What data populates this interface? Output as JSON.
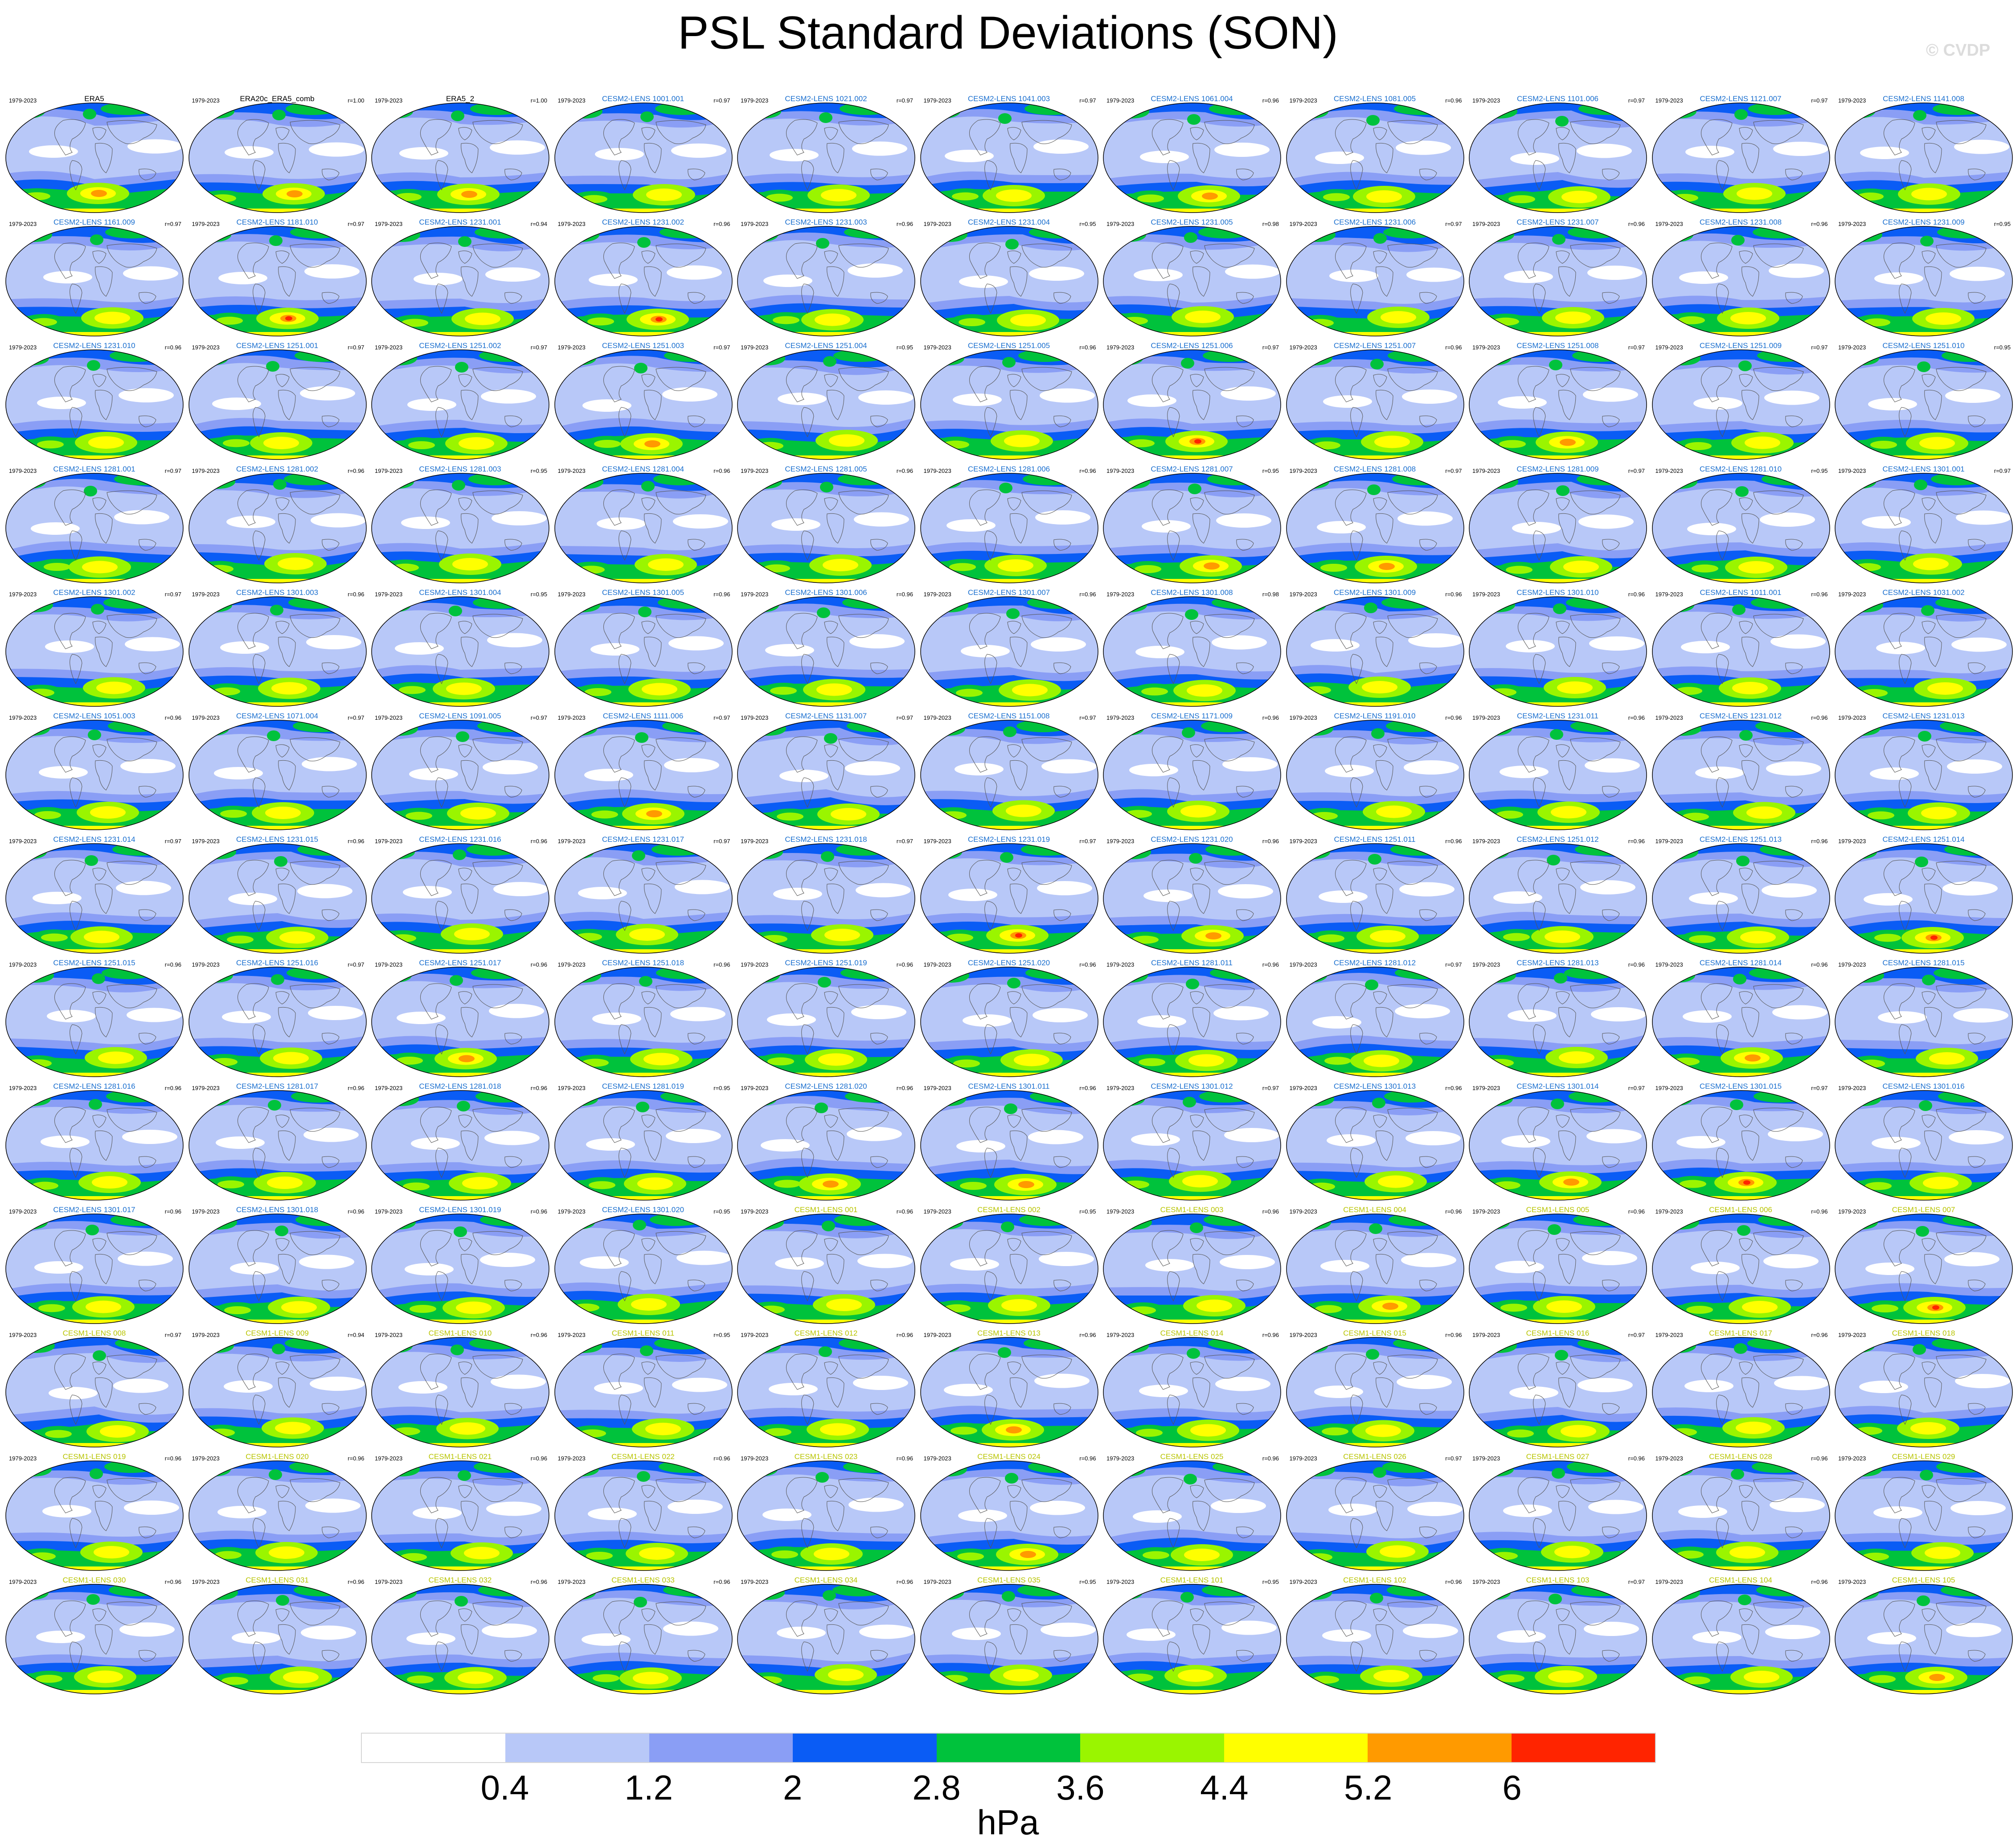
{
  "title": "PSL Standard Deviations (SON)",
  "watermark": "© CVDP",
  "period": "1979-2023",
  "colorbar": {
    "colors": [
      "#ffffff",
      "#b8c8f8",
      "#8a9ef5",
      "#0a5cf5",
      "#00c23c",
      "#9af500",
      "#ffff00",
      "#ff9a00",
      "#ff2400"
    ],
    "labels": [
      "0.4",
      "1.2",
      "2",
      "2.8",
      "3.6",
      "4.4",
      "5.2",
      "6"
    ],
    "units": "hPa"
  },
  "panels": [
    {
      "title": "ERA5",
      "r": "",
      "t": 0,
      "v": 2
    },
    {
      "title": "ERA20c_ERA5_comb",
      "r": "r=1.00",
      "t": 0,
      "v": 2
    },
    {
      "title": "ERA5_2",
      "r": "r=1.00",
      "t": 0,
      "v": 2
    },
    {
      "title": "CESM2-LENS 1001.001",
      "r": "r=0.97",
      "t": 1,
      "v": 1
    },
    {
      "title": "CESM2-LENS 1021.002",
      "r": "r=0.97",
      "t": 1,
      "v": 1
    },
    {
      "title": "CESM2-LENS 1041.003",
      "r": "r=0.97",
      "t": 1,
      "v": 1
    },
    {
      "title": "CESM2-LENS 1061.004",
      "r": "r=0.96",
      "t": 1,
      "v": 2
    },
    {
      "title": "CESM2-LENS 1081.005",
      "r": "r=0.96",
      "t": 1,
      "v": 1
    },
    {
      "title": "CESM2-LENS 1101.006",
      "r": "r=0.97",
      "t": 1,
      "v": 1
    },
    {
      "title": "CESM2-LENS 1121.007",
      "r": "r=0.97",
      "t": 1,
      "v": 1
    },
    {
      "title": "CESM2-LENS 1141.008",
      "r": "",
      "t": 1,
      "v": 1
    },
    {
      "title": "CESM2-LENS 1161.009",
      "r": "r=0.97",
      "t": 1,
      "v": 1
    },
    {
      "title": "CESM2-LENS 1181.010",
      "r": "r=0.97",
      "t": 1,
      "v": 3
    },
    {
      "title": "CESM2-LENS 1231.001",
      "r": "r=0.94",
      "t": 1,
      "v": 1
    },
    {
      "title": "CESM2-LENS 1231.002",
      "r": "r=0.96",
      "t": 1,
      "v": 3
    },
    {
      "title": "CESM2-LENS 1231.003",
      "r": "r=0.96",
      "t": 1,
      "v": 1
    },
    {
      "title": "CESM2-LENS 1231.004",
      "r": "r=0.95",
      "t": 1,
      "v": 1
    },
    {
      "title": "CESM2-LENS 1231.005",
      "r": "r=0.98",
      "t": 1,
      "v": 1
    },
    {
      "title": "CESM2-LENS 1231.006",
      "r": "r=0.97",
      "t": 1,
      "v": 1
    },
    {
      "title": "CESM2-LENS 1231.007",
      "r": "r=0.96",
      "t": 1,
      "v": 1
    },
    {
      "title": "CESM2-LENS 1231.008",
      "r": "r=0.96",
      "t": 1,
      "v": 1
    },
    {
      "title": "CESM2-LENS 1231.009",
      "r": "r=0.95",
      "t": 1,
      "v": 1
    },
    {
      "title": "CESM2-LENS 1231.010",
      "r": "r=0.96",
      "t": 1,
      "v": 1
    },
    {
      "title": "CESM2-LENS 1251.001",
      "r": "r=0.97",
      "t": 1,
      "v": 1
    },
    {
      "title": "CESM2-LENS 1251.002",
      "r": "r=0.97",
      "t": 1,
      "v": 1
    },
    {
      "title": "CESM2-LENS 1251.003",
      "r": "r=0.97",
      "t": 1,
      "v": 2
    },
    {
      "title": "CESM2-LENS 1251.004",
      "r": "r=0.95",
      "t": 1,
      "v": 1
    },
    {
      "title": "CESM2-LENS 1251.005",
      "r": "r=0.96",
      "t": 1,
      "v": 1
    },
    {
      "title": "CESM2-LENS 1251.006",
      "r": "r=0.97",
      "t": 1,
      "v": 3
    },
    {
      "title": "CESM2-LENS 1251.007",
      "r": "r=0.96",
      "t": 1,
      "v": 1
    },
    {
      "title": "CESM2-LENS 1251.008",
      "r": "r=0.97",
      "t": 1,
      "v": 2
    },
    {
      "title": "CESM2-LENS 1251.009",
      "r": "r=0.97",
      "t": 1,
      "v": 1
    },
    {
      "title": "CESM2-LENS 1251.010",
      "r": "r=0.95",
      "t": 1,
      "v": 1
    },
    {
      "title": "CESM2-LENS 1281.001",
      "r": "r=0.97",
      "t": 1,
      "v": 1
    },
    {
      "title": "CESM2-LENS 1281.002",
      "r": "r=0.96",
      "t": 1,
      "v": 1
    },
    {
      "title": "CESM2-LENS 1281.003",
      "r": "r=0.95",
      "t": 1,
      "v": 1
    },
    {
      "title": "CESM2-LENS 1281.004",
      "r": "r=0.96",
      "t": 1,
      "v": 1
    },
    {
      "title": "CESM2-LENS 1281.005",
      "r": "r=0.96",
      "t": 1,
      "v": 1
    },
    {
      "title": "CESM2-LENS 1281.006",
      "r": "r=0.96",
      "t": 1,
      "v": 1
    },
    {
      "title": "CESM2-LENS 1281.007",
      "r": "r=0.95",
      "t": 1,
      "v": 2
    },
    {
      "title": "CESM2-LENS 1281.008",
      "r": "r=0.97",
      "t": 1,
      "v": 2
    },
    {
      "title": "CESM2-LENS 1281.009",
      "r": "r=0.97",
      "t": 1,
      "v": 1
    },
    {
      "title": "CESM2-LENS 1281.010",
      "r": "r=0.95",
      "t": 1,
      "v": 1
    },
    {
      "title": "CESM2-LENS 1301.001",
      "r": "r=0.97",
      "t": 1,
      "v": 1
    },
    {
      "title": "CESM2-LENS 1301.002",
      "r": "r=0.97",
      "t": 1,
      "v": 1
    },
    {
      "title": "CESM2-LENS 1301.003",
      "r": "r=0.96",
      "t": 1,
      "v": 1
    },
    {
      "title": "CESM2-LENS 1301.004",
      "r": "r=0.95",
      "t": 1,
      "v": 1
    },
    {
      "title": "CESM2-LENS 1301.005",
      "r": "r=0.96",
      "t": 1,
      "v": 1
    },
    {
      "title": "CESM2-LENS 1301.006",
      "r": "r=0.96",
      "t": 1,
      "v": 1
    },
    {
      "title": "CESM2-LENS 1301.007",
      "r": "r=0.96",
      "t": 1,
      "v": 1
    },
    {
      "title": "CESM2-LENS 1301.008",
      "r": "r=0.98",
      "t": 1,
      "v": 1
    },
    {
      "title": "CESM2-LENS 1301.009",
      "r": "r=0.96",
      "t": 1,
      "v": 1
    },
    {
      "title": "CESM2-LENS 1301.010",
      "r": "r=0.96",
      "t": 1,
      "v": 1
    },
    {
      "title": "CESM2-LENS 1011.001",
      "r": "r=0.96",
      "t": 1,
      "v": 1
    },
    {
      "title": "CESM2-LENS 1031.002",
      "r": "",
      "t": 1,
      "v": 1
    },
    {
      "title": "CESM2-LENS 1051.003",
      "r": "r=0.96",
      "t": 1,
      "v": 1
    },
    {
      "title": "CESM2-LENS 1071.004",
      "r": "r=0.97",
      "t": 1,
      "v": 1
    },
    {
      "title": "CESM2-LENS 1091.005",
      "r": "r=0.97",
      "t": 1,
      "v": 1
    },
    {
      "title": "CESM2-LENS 1111.006",
      "r": "r=0.97",
      "t": 1,
      "v": 2
    },
    {
      "title": "CESM2-LENS 1131.007",
      "r": "r=0.97",
      "t": 1,
      "v": 1
    },
    {
      "title": "CESM2-LENS 1151.008",
      "r": "r=0.97",
      "t": 1,
      "v": 1
    },
    {
      "title": "CESM2-LENS 1171.009",
      "r": "r=0.96",
      "t": 1,
      "v": 1
    },
    {
      "title": "CESM2-LENS 1191.010",
      "r": "r=0.96",
      "t": 1,
      "v": 1
    },
    {
      "title": "CESM2-LENS 1231.011",
      "r": "r=0.96",
      "t": 1,
      "v": 1
    },
    {
      "title": "CESM2-LENS 1231.012",
      "r": "r=0.96",
      "t": 1,
      "v": 1
    },
    {
      "title": "CESM2-LENS 1231.013",
      "r": "",
      "t": 1,
      "v": 1
    },
    {
      "title": "CESM2-LENS 1231.014",
      "r": "r=0.97",
      "t": 1,
      "v": 1
    },
    {
      "title": "CESM2-LENS 1231.015",
      "r": "r=0.96",
      "t": 1,
      "v": 1
    },
    {
      "title": "CESM2-LENS 1231.016",
      "r": "r=0.96",
      "t": 1,
      "v": 1
    },
    {
      "title": "CESM2-LENS 1231.017",
      "r": "r=0.97",
      "t": 1,
      "v": 1
    },
    {
      "title": "CESM2-LENS 1231.018",
      "r": "r=0.97",
      "t": 1,
      "v": 1
    },
    {
      "title": "CESM2-LENS 1231.019",
      "r": "r=0.97",
      "t": 1,
      "v": 3
    },
    {
      "title": "CESM2-LENS 1231.020",
      "r": "r=0.96",
      "t": 1,
      "v": 2
    },
    {
      "title": "CESM2-LENS 1251.011",
      "r": "r=0.96",
      "t": 1,
      "v": 1
    },
    {
      "title": "CESM2-LENS 1251.012",
      "r": "r=0.96",
      "t": 1,
      "v": 1
    },
    {
      "title": "CESM2-LENS 1251.013",
      "r": "r=0.96",
      "t": 1,
      "v": 1
    },
    {
      "title": "CESM2-LENS 1251.014",
      "r": "",
      "t": 1,
      "v": 3
    },
    {
      "title": "CESM2-LENS 1251.015",
      "r": "r=0.96",
      "t": 1,
      "v": 1
    },
    {
      "title": "CESM2-LENS 1251.016",
      "r": "r=0.97",
      "t": 1,
      "v": 1
    },
    {
      "title": "CESM2-LENS 1251.017",
      "r": "r=0.96",
      "t": 1,
      "v": 2
    },
    {
      "title": "CESM2-LENS 1251.018",
      "r": "r=0.96",
      "t": 1,
      "v": 1
    },
    {
      "title": "CESM2-LENS 1251.019",
      "r": "r=0.96",
      "t": 1,
      "v": 1
    },
    {
      "title": "CESM2-LENS 1251.020",
      "r": "r=0.96",
      "t": 1,
      "v": 1
    },
    {
      "title": "CESM2-LENS 1281.011",
      "r": "r=0.96",
      "t": 1,
      "v": 1
    },
    {
      "title": "CESM2-LENS 1281.012",
      "r": "r=0.97",
      "t": 1,
      "v": 1
    },
    {
      "title": "CESM2-LENS 1281.013",
      "r": "r=0.96",
      "t": 1,
      "v": 1
    },
    {
      "title": "CESM2-LENS 1281.014",
      "r": "r=0.96",
      "t": 1,
      "v": 2
    },
    {
      "title": "CESM2-LENS 1281.015",
      "r": "",
      "t": 1,
      "v": 1
    },
    {
      "title": "CESM2-LENS 1281.016",
      "r": "r=0.96",
      "t": 1,
      "v": 1
    },
    {
      "title": "CESM2-LENS 1281.017",
      "r": "r=0.96",
      "t": 1,
      "v": 1
    },
    {
      "title": "CESM2-LENS 1281.018",
      "r": "r=0.96",
      "t": 1,
      "v": 1
    },
    {
      "title": "CESM2-LENS 1281.019",
      "r": "r=0.95",
      "t": 1,
      "v": 1
    },
    {
      "title": "CESM2-LENS 1281.020",
      "r": "r=0.96",
      "t": 1,
      "v": 2
    },
    {
      "title": "CESM2-LENS 1301.011",
      "r": "r=0.96",
      "t": 1,
      "v": 2
    },
    {
      "title": "CESM2-LENS 1301.012",
      "r": "r=0.97",
      "t": 1,
      "v": 1
    },
    {
      "title": "CESM2-LENS 1301.013",
      "r": "r=0.96",
      "t": 1,
      "v": 1
    },
    {
      "title": "CESM2-LENS 1301.014",
      "r": "r=0.97",
      "t": 1,
      "v": 2
    },
    {
      "title": "CESM2-LENS 1301.015",
      "r": "r=0.97",
      "t": 1,
      "v": 3
    },
    {
      "title": "CESM2-LENS 1301.016",
      "r": "",
      "t": 1,
      "v": 1
    },
    {
      "title": "CESM2-LENS 1301.017",
      "r": "r=0.96",
      "t": 1,
      "v": 1
    },
    {
      "title": "CESM2-LENS 1301.018",
      "r": "r=0.96",
      "t": 1,
      "v": 1
    },
    {
      "title": "CESM2-LENS 1301.019",
      "r": "r=0.96",
      "t": 1,
      "v": 1
    },
    {
      "title": "CESM2-LENS 1301.020",
      "r": "r=0.95",
      "t": 1,
      "v": 1
    },
    {
      "title": "CESM1-LENS 001",
      "r": "r=0.96",
      "t": 2,
      "v": 1
    },
    {
      "title": "CESM1-LENS 002",
      "r": "r=0.95",
      "t": 2,
      "v": 1
    },
    {
      "title": "CESM1-LENS 003",
      "r": "r=0.96",
      "t": 2,
      "v": 1
    },
    {
      "title": "CESM1-LENS 004",
      "r": "r=0.96",
      "t": 2,
      "v": 2
    },
    {
      "title": "CESM1-LENS 005",
      "r": "r=0.96",
      "t": 2,
      "v": 1
    },
    {
      "title": "CESM1-LENS 006",
      "r": "r=0.96",
      "t": 2,
      "v": 1
    },
    {
      "title": "CESM1-LENS 007",
      "r": "",
      "t": 2,
      "v": 3
    },
    {
      "title": "CESM1-LENS 008",
      "r": "r=0.97",
      "t": 2,
      "v": 1
    },
    {
      "title": "CESM1-LENS 009",
      "r": "r=0.94",
      "t": 2,
      "v": 1
    },
    {
      "title": "CESM1-LENS 010",
      "r": "r=0.96",
      "t": 2,
      "v": 1
    },
    {
      "title": "CESM1-LENS 011",
      "r": "r=0.95",
      "t": 2,
      "v": 1
    },
    {
      "title": "CESM1-LENS 012",
      "r": "r=0.96",
      "t": 2,
      "v": 1
    },
    {
      "title": "CESM1-LENS 013",
      "r": "r=0.96",
      "t": 2,
      "v": 2
    },
    {
      "title": "CESM1-LENS 014",
      "r": "r=0.96",
      "t": 2,
      "v": 1
    },
    {
      "title": "CESM1-LENS 015",
      "r": "r=0.96",
      "t": 2,
      "v": 1
    },
    {
      "title": "CESM1-LENS 016",
      "r": "r=0.97",
      "t": 2,
      "v": 1
    },
    {
      "title": "CESM1-LENS 017",
      "r": "r=0.96",
      "t": 2,
      "v": 1
    },
    {
      "title": "CESM1-LENS 018",
      "r": "",
      "t": 2,
      "v": 1
    },
    {
      "title": "CESM1-LENS 019",
      "r": "r=0.96",
      "t": 2,
      "v": 1
    },
    {
      "title": "CESM1-LENS 020",
      "r": "r=0.96",
      "t": 2,
      "v": 1
    },
    {
      "title": "CESM1-LENS 021",
      "r": "r=0.96",
      "t": 2,
      "v": 1
    },
    {
      "title": "CESM1-LENS 022",
      "r": "r=0.96",
      "t": 2,
      "v": 1
    },
    {
      "title": "CESM1-LENS 023",
      "r": "r=0.96",
      "t": 2,
      "v": 1
    },
    {
      "title": "CESM1-LENS 024",
      "r": "r=0.96",
      "t": 2,
      "v": 2
    },
    {
      "title": "CESM1-LENS 025",
      "r": "r=0.96",
      "t": 2,
      "v": 1
    },
    {
      "title": "CESM1-LENS 026",
      "r": "r=0.97",
      "t": 2,
      "v": 1
    },
    {
      "title": "CESM1-LENS 027",
      "r": "r=0.96",
      "t": 2,
      "v": 1
    },
    {
      "title": "CESM1-LENS 028",
      "r": "r=0.96",
      "t": 2,
      "v": 1
    },
    {
      "title": "CESM1-LENS 029",
      "r": "",
      "t": 2,
      "v": 1
    },
    {
      "title": "CESM1-LENS 030",
      "r": "r=0.96",
      "t": 2,
      "v": 1
    },
    {
      "title": "CESM1-LENS 031",
      "r": "r=0.96",
      "t": 2,
      "v": 1
    },
    {
      "title": "CESM1-LENS 032",
      "r": "r=0.96",
      "t": 2,
      "v": 1
    },
    {
      "title": "CESM1-LENS 033",
      "r": "r=0.96",
      "t": 2,
      "v": 1
    },
    {
      "title": "CESM1-LENS 034",
      "r": "r=0.96",
      "t": 2,
      "v": 1
    },
    {
      "title": "CESM1-LENS 035",
      "r": "r=0.95",
      "t": 2,
      "v": 1
    },
    {
      "title": "CESM1-LENS 101",
      "r": "r=0.95",
      "t": 2,
      "v": 1
    },
    {
      "title": "CESM1-LENS 102",
      "r": "r=0.96",
      "t": 2,
      "v": 1
    },
    {
      "title": "CESM1-LENS 103",
      "r": "r=0.97",
      "t": 2,
      "v": 1
    },
    {
      "title": "CESM1-LENS 104",
      "r": "r=0.96",
      "t": 2,
      "v": 1
    },
    {
      "title": "CESM1-LENS 105",
      "r": "",
      "t": 2,
      "v": 2
    }
  ]
}
